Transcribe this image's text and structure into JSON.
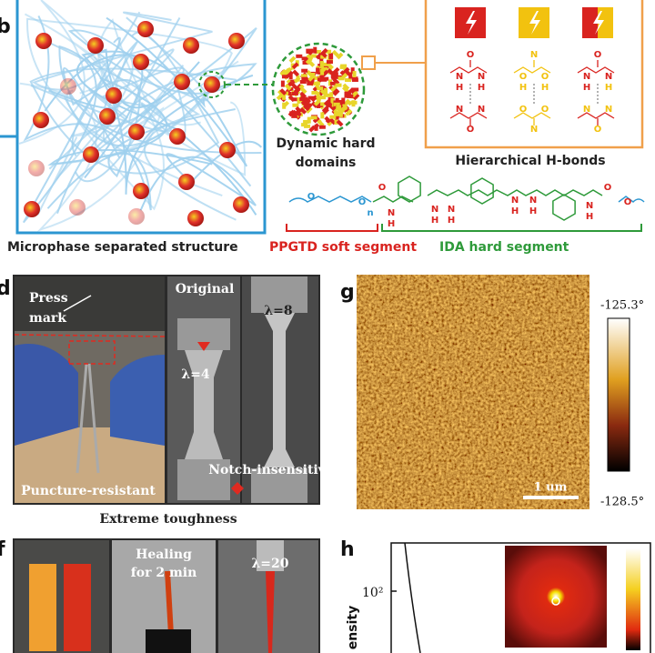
{
  "panel_b": {
    "label": "b",
    "domain_label": [
      "Dynamic hard",
      "domains"
    ],
    "hbond_title": "Hierarchical H-bonds",
    "chain_atoms": [
      "O",
      "O",
      "n",
      "O",
      "N",
      "H",
      "N",
      "H",
      "N",
      "H",
      "N",
      "H",
      "N",
      "H",
      "N",
      "H",
      "O",
      "O"
    ],
    "hbond_atoms": [
      [
        "N",
        "N",
        "O",
        "H",
        "H",
        "O",
        "N",
        "N"
      ],
      [
        "O",
        "O",
        "N",
        "H",
        "H",
        "N",
        "O",
        "O"
      ],
      [
        "N",
        "N",
        "O",
        "H",
        "H",
        "O",
        "N",
        "N"
      ]
    ],
    "caption": [
      "Microphase separated structure",
      "PPGTD soft segment",
      "IDA hard segment"
    ]
  },
  "panel_d": {
    "label": "d",
    "press": [
      "Press",
      "mark"
    ],
    "original": "Original",
    "lambda_8": "λ=8",
    "lambda_4": "λ=4",
    "notch": "Notch-insensitive",
    "puncture": "Puncture-resistant",
    "caption": "Extreme toughness"
  },
  "panel_g": {
    "label": "g",
    "max": "-125.3°",
    "min": "-128.5°",
    "scale": "1 um"
  },
  "panel_f": {
    "label": "f",
    "healing": [
      "Healing",
      "for 2 min"
    ],
    "lambda_20": "λ=20"
  },
  "panel_h": {
    "label": "h",
    "ytick": "10²",
    "ylabel": "ensity"
  }
}
